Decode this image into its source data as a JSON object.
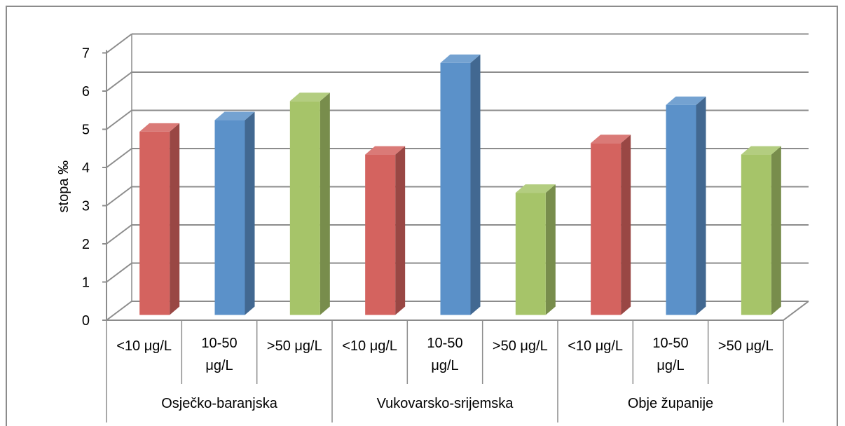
{
  "chart_data": {
    "type": "bar",
    "title": "",
    "ylabel": "stopa ‰",
    "xlabel": "",
    "ylim": [
      0,
      7
    ],
    "y_ticks": [
      "0",
      "1",
      "2",
      "3",
      "4",
      "5",
      "6",
      "7"
    ],
    "three_d": true,
    "grid": true,
    "legend": "none",
    "groups": [
      "Osječko-baranjska",
      "Vukovarsko-srijemska",
      "Obje županije"
    ],
    "bars": [
      {
        "group": "Osječko-baranjska",
        "label": [
          "<10 μg/L"
        ],
        "value": 4.8,
        "color": "#D4635F"
      },
      {
        "group": "Osječko-baranjska",
        "label": [
          "10-50",
          "μg/L"
        ],
        "value": 5.1,
        "color": "#5B91C9"
      },
      {
        "group": "Osječko-baranjska",
        "label": [
          ">50 μg/L"
        ],
        "value": 5.6,
        "color": "#A6C469"
      },
      {
        "group": "Vukovarsko-srijemska",
        "label": [
          "<10 μg/L"
        ],
        "value": 4.2,
        "color": "#D4635F"
      },
      {
        "group": "Vukovarsko-srijemska",
        "label": [
          "10-50",
          "μg/L"
        ],
        "value": 6.6,
        "color": "#5B91C9"
      },
      {
        "group": "Vukovarsko-srijemska",
        "label": [
          ">50 μg/L"
        ],
        "value": 3.2,
        "color": "#A6C469"
      },
      {
        "group": "Obje županije",
        "label": [
          "<10 μg/L"
        ],
        "value": 4.5,
        "color": "#D4635F"
      },
      {
        "group": "Obje županije",
        "label": [
          "10-50",
          "μg/L"
        ],
        "value": 5.5,
        "color": "#5B91C9"
      },
      {
        "group": "Obje županije",
        "label": [
          ">50 μg/L"
        ],
        "value": 4.2,
        "color": "#A6C469"
      }
    ]
  }
}
